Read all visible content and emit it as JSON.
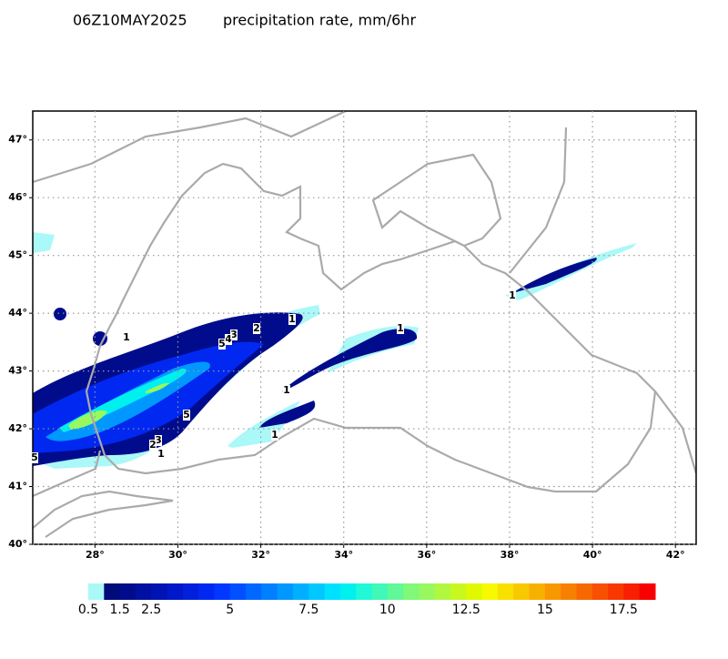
{
  "header": {
    "time": "06Z10MAY2025",
    "variable": "precipitation rate, mm/6hr"
  },
  "map": {
    "lon_range": [
      26.5,
      42.5
    ],
    "lat_range": [
      40,
      47.5
    ],
    "lon_ticks": [
      {
        "value": 28,
        "label": "28°"
      },
      {
        "value": 30,
        "label": "30°"
      },
      {
        "value": 32,
        "label": "32°"
      },
      {
        "value": 34,
        "label": "34°"
      },
      {
        "value": 36,
        "label": "36°"
      },
      {
        "value": 38,
        "label": "38°"
      },
      {
        "value": 40,
        "label": "40°"
      },
      {
        "value": 42,
        "label": "42°"
      }
    ],
    "lat_ticks": [
      {
        "value": 40,
        "label": "40°"
      },
      {
        "value": 41,
        "label": "41°"
      },
      {
        "value": 42,
        "label": "42°"
      },
      {
        "value": 43,
        "label": "43°"
      },
      {
        "value": 44,
        "label": "44°"
      },
      {
        "value": 45,
        "label": "45°"
      },
      {
        "value": 46,
        "label": "46°"
      },
      {
        "value": 47,
        "label": "47°"
      }
    ],
    "contour_labels": [
      "1",
      "3",
      "4",
      "5",
      "2",
      "1",
      "1",
      "5",
      "3",
      "2",
      "1",
      "1",
      "1",
      "5",
      "1"
    ]
  },
  "colorbar": {
    "range": [
      0.5,
      18.5
    ],
    "ticks": [
      0.5,
      1.5,
      2.5,
      5,
      7.5,
      10,
      12.5,
      15,
      17.5
    ],
    "colors": [
      "#aaf8f8",
      "#000a78",
      "#000c8c",
      "#0010a0",
      "#0014b4",
      "#0018c8",
      "#0020dc",
      "#0028f0",
      "#0038ff",
      "#0050ff",
      "#0068ff",
      "#0080ff",
      "#0098ff",
      "#00b0ff",
      "#00c8ff",
      "#00e0ff",
      "#00f0f0",
      "#20f8d8",
      "#40f8b8",
      "#60f898",
      "#80f878",
      "#98f860",
      "#b0f840",
      "#c8f820",
      "#e0f800",
      "#f8f800",
      "#f8e000",
      "#f8c800",
      "#f8b000",
      "#f89800",
      "#f88000",
      "#f86800",
      "#f85000",
      "#f83800",
      "#f82000",
      "#f80000"
    ]
  }
}
